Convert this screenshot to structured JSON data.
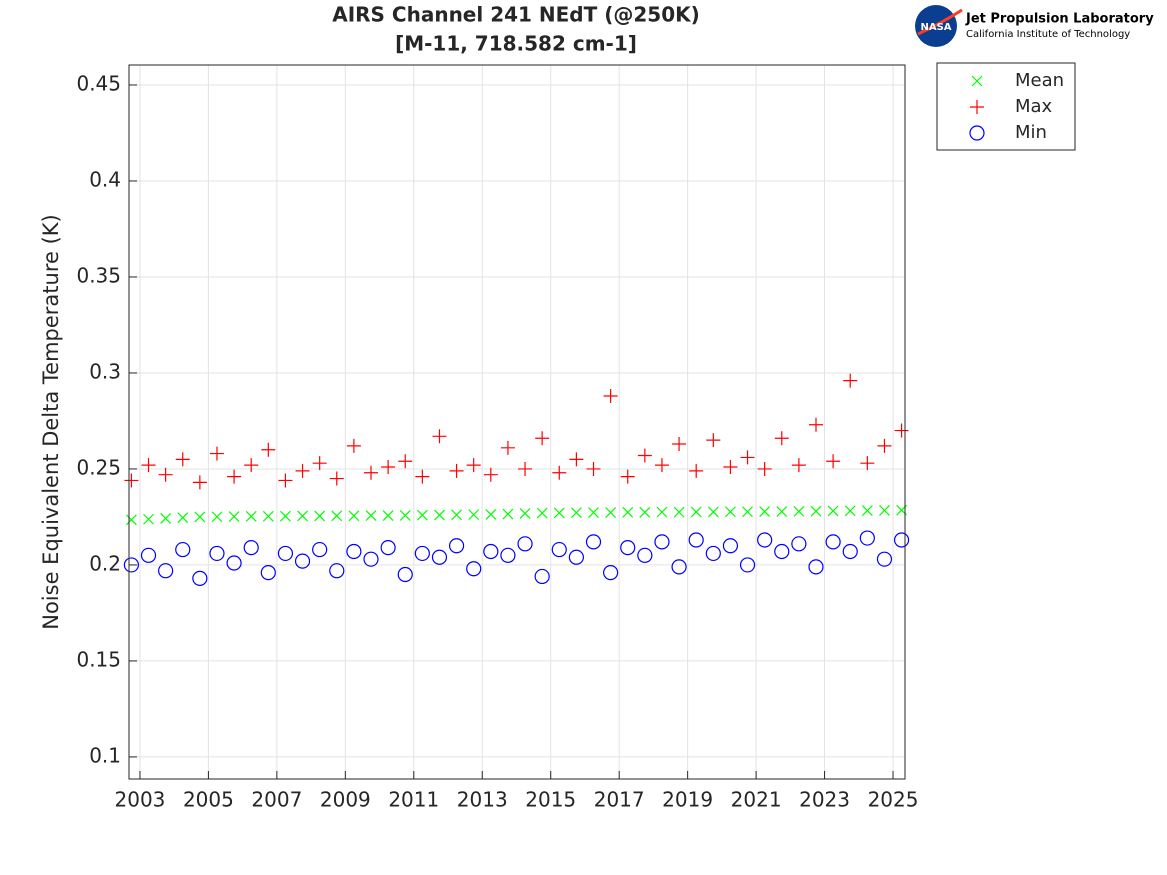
{
  "chart_data": {
    "type": "scatter",
    "title": "AIRS Channel 241 NEdT (@250K)",
    "subtitle": "[M-11, 718.582 cm-1]",
    "ylabel": "Noise Equivalent Delta Temperature (K)",
    "x": [
      2002.75,
      2003.25,
      2003.75,
      2004.25,
      2004.75,
      2005.25,
      2005.75,
      2006.25,
      2006.75,
      2007.25,
      2007.75,
      2008.25,
      2008.75,
      2009.25,
      2009.75,
      2010.25,
      2010.75,
      2011.25,
      2011.75,
      2012.25,
      2012.75,
      2013.25,
      2013.75,
      2014.25,
      2014.75,
      2015.25,
      2015.75,
      2016.25,
      2016.75,
      2017.25,
      2017.75,
      2018.25,
      2018.75,
      2019.25,
      2019.75,
      2020.25,
      2020.75,
      2021.25,
      2021.75,
      2022.25,
      2022.75,
      2023.25,
      2023.75,
      2024.25,
      2024.75,
      2025.25
    ],
    "series": [
      {
        "name": "Mean",
        "color": "#00ff00",
        "marker": "x",
        "values": [
          0.2235,
          0.2238,
          0.2242,
          0.2246,
          0.225,
          0.2251,
          0.2252,
          0.2253,
          0.2253,
          0.2254,
          0.2255,
          0.2255,
          0.2256,
          0.2256,
          0.2257,
          0.2257,
          0.2258,
          0.2259,
          0.226,
          0.2261,
          0.2262,
          0.2263,
          0.2265,
          0.2268,
          0.227,
          0.2271,
          0.2272,
          0.2273,
          0.2273,
          0.2274,
          0.2274,
          0.2275,
          0.2275,
          0.2276,
          0.2276,
          0.2277,
          0.2277,
          0.2278,
          0.2278,
          0.2279,
          0.228,
          0.2281,
          0.2282,
          0.2283,
          0.2284,
          0.2285
        ]
      },
      {
        "name": "Max",
        "color": "#ff0000",
        "marker": "+",
        "values": [
          0.244,
          0.252,
          0.247,
          0.255,
          0.243,
          0.258,
          0.246,
          0.252,
          0.26,
          0.244,
          0.249,
          0.253,
          0.245,
          0.262,
          0.248,
          0.251,
          0.254,
          0.246,
          0.267,
          0.249,
          0.252,
          0.247,
          0.261,
          0.25,
          0.266,
          0.248,
          0.255,
          0.25,
          0.288,
          0.246,
          0.257,
          0.252,
          0.263,
          0.249,
          0.265,
          0.251,
          0.256,
          0.25,
          0.266,
          0.252,
          0.273,
          0.254,
          0.296,
          0.253,
          0.262,
          0.27
        ]
      },
      {
        "name": "Min",
        "color": "#0000ff",
        "marker": "o",
        "values": [
          0.2,
          0.205,
          0.197,
          0.208,
          0.193,
          0.206,
          0.201,
          0.209,
          0.196,
          0.206,
          0.202,
          0.208,
          0.197,
          0.207,
          0.203,
          0.209,
          0.195,
          0.206,
          0.204,
          0.21,
          0.198,
          0.207,
          0.205,
          0.211,
          0.194,
          0.208,
          0.204,
          0.212,
          0.196,
          0.209,
          0.205,
          0.212,
          0.199,
          0.213,
          0.206,
          0.21,
          0.2,
          0.213,
          0.207,
          0.211,
          0.199,
          0.212,
          0.207,
          0.214,
          0.203,
          0.213
        ]
      }
    ],
    "xlim": [
      2002.68,
      2025.35
    ],
    "xticks": [
      2003,
      2005,
      2007,
      2009,
      2011,
      2013,
      2015,
      2017,
      2019,
      2021,
      2023,
      2025
    ],
    "ylim": [
      0.0885,
      0.4604
    ],
    "yticks": [
      0.1,
      0.15,
      0.2,
      0.25,
      0.3,
      0.35,
      0.4,
      0.45
    ],
    "grid": true,
    "legend": "outside-upper-right"
  },
  "logo": {
    "badge": "NASA",
    "org": "Jet Propulsion Laboratory",
    "sub": "California Institute of Technology"
  }
}
